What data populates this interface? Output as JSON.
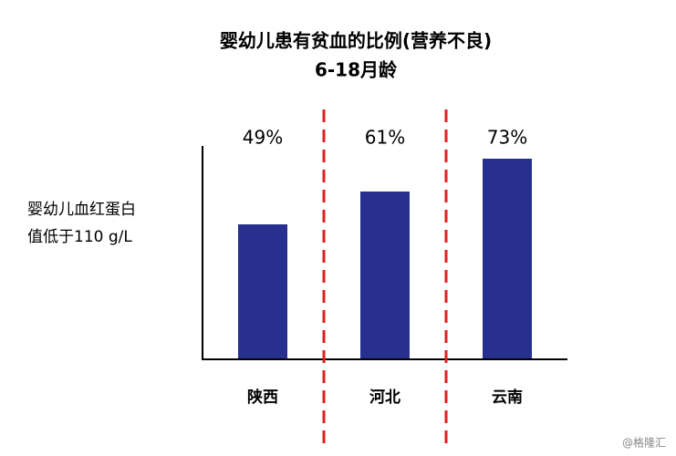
{
  "chart_data": {
    "type": "bar",
    "title": "婴幼儿患有贫血的比例(营养不良)",
    "subtitle": "6-18月龄",
    "ylabel": [
      "婴幼儿血红蛋白",
      "值低于110 g/L"
    ],
    "categories": [
      "陕西",
      "河北",
      "云南"
    ],
    "values": [
      49,
      61,
      73
    ],
    "value_labels": [
      "49%",
      "61%",
      "73%"
    ],
    "color": "#27308f",
    "separator_color": "#e02020",
    "watermark": "@格隆汇"
  }
}
